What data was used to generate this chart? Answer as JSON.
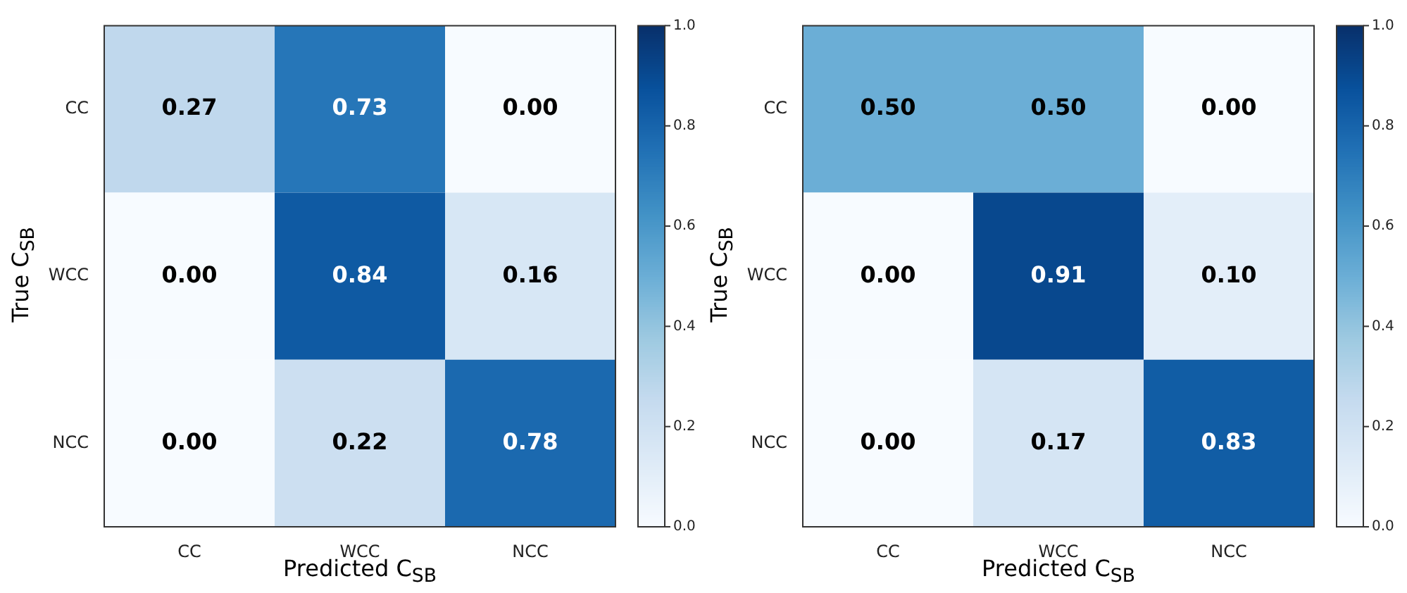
{
  "chart_data": [
    {
      "type": "heatmap",
      "xlabel": "Predicted C$_{SB}$",
      "ylabel": "True C$_{SB}$",
      "categories": [
        "CC",
        "WCC",
        "NCC"
      ],
      "y_categories": [
        "CC",
        "WCC",
        "NCC"
      ],
      "cells": [
        [
          0.27,
          0.73,
          0.0
        ],
        [
          0.0,
          0.84,
          0.16
        ],
        [
          0.0,
          0.22,
          0.78
        ]
      ],
      "cell_labels": [
        [
          "0.27",
          "0.73",
          "0.00"
        ],
        [
          "0.00",
          "0.84",
          "0.16"
        ],
        [
          "0.00",
          "0.22",
          "0.78"
        ]
      ],
      "data_labels": true,
      "clim": [
        0,
        1
      ],
      "cticks": [
        {
          "value": 0,
          "label": "0.0"
        },
        {
          "value": 0.2,
          "label": "0.2"
        },
        {
          "value": 0.4,
          "label": "0.4"
        },
        {
          "value": 0.6,
          "label": "0.6"
        },
        {
          "value": 0.8,
          "label": "0.8"
        },
        {
          "value": 1,
          "label": "1.0"
        }
      ]
    },
    {
      "type": "heatmap",
      "xlabel": "Predicted C$_{SB}$",
      "ylabel": "True C$_{SB}$",
      "categories": [
        "CC",
        "WCC",
        "NCC"
      ],
      "y_categories": [
        "CC",
        "WCC",
        "NCC"
      ],
      "cells": [
        [
          0.5,
          0.5,
          0.0
        ],
        [
          0.0,
          0.91,
          0.1
        ],
        [
          0.0,
          0.17,
          0.83
        ]
      ],
      "cell_labels": [
        [
          "0.50",
          "0.50",
          "0.00"
        ],
        [
          "0.00",
          "0.91",
          "0.10"
        ],
        [
          "0.00",
          "0.17",
          "0.83"
        ]
      ],
      "data_labels": true,
      "clim": [
        0,
        1
      ],
      "cticks": [
        {
          "value": 0,
          "label": "0.0"
        },
        {
          "value": 0.2,
          "label": "0.2"
        },
        {
          "value": 0.4,
          "label": "0.4"
        },
        {
          "value": 0.6,
          "label": "0.6"
        },
        {
          "value": 0.8,
          "label": "0.8"
        },
        {
          "value": 1,
          "label": "1.0"
        }
      ]
    }
  ]
}
